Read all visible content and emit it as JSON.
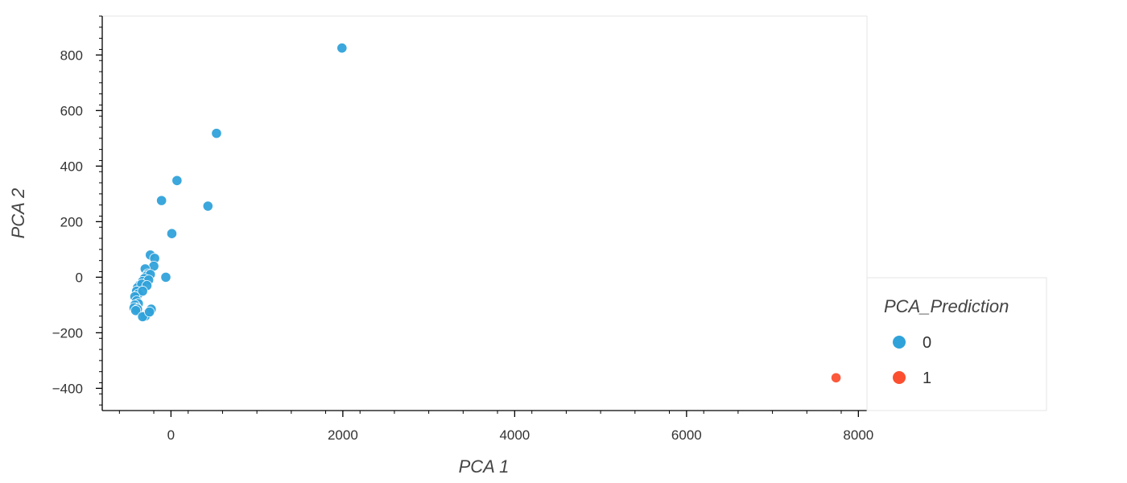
{
  "chart_data": {
    "type": "scatter",
    "title": "",
    "xlabel": "PCA 1",
    "ylabel": "PCA 2",
    "xlim": [
      -800,
      8100
    ],
    "ylim": [
      -480,
      940
    ],
    "x_ticks": [
      0,
      2000,
      4000,
      6000,
      8000
    ],
    "y_ticks": [
      -400,
      -200,
      0,
      200,
      400,
      600,
      800
    ],
    "x_tick_labels": [
      "0",
      "2000",
      "4000",
      "6000",
      "8000"
    ],
    "y_tick_labels": [
      "−400",
      "−200",
      "0",
      "200",
      "400",
      "600",
      "800"
    ],
    "grid": false,
    "legend": {
      "title": "PCA_Prediction",
      "placement": "right-bottom, outside plot",
      "entries": [
        {
          "label": "0",
          "color": "#30a2da"
        },
        {
          "label": "1",
          "color": "#fc4f30"
        }
      ]
    },
    "series": [
      {
        "name": "0",
        "color": "#30a2da",
        "points": [
          [
            1990,
            825
          ],
          [
            530,
            518
          ],
          [
            70,
            348
          ],
          [
            -110,
            276
          ],
          [
            430,
            256
          ],
          [
            10,
            157
          ],
          [
            -240,
            80
          ],
          [
            -190,
            68
          ],
          [
            -200,
            40
          ],
          [
            -300,
            30
          ],
          [
            -270,
            12
          ],
          [
            -280,
            5
          ],
          [
            -240,
            10
          ],
          [
            -310,
            -5
          ],
          [
            -330,
            -15
          ],
          [
            -260,
            -10
          ],
          [
            -370,
            -30
          ],
          [
            -390,
            -38
          ],
          [
            -340,
            -25
          ],
          [
            -280,
            -30
          ],
          [
            -60,
            0
          ],
          [
            -400,
            -50
          ],
          [
            -380,
            -60
          ],
          [
            -330,
            -50
          ],
          [
            -420,
            -70
          ],
          [
            -400,
            -85
          ],
          [
            -380,
            -95
          ],
          [
            -420,
            -100
          ],
          [
            -400,
            -110
          ],
          [
            -430,
            -110
          ],
          [
            -390,
            -115
          ],
          [
            -410,
            -120
          ],
          [
            -270,
            -130
          ],
          [
            -300,
            -140
          ],
          [
            -330,
            -142
          ],
          [
            -230,
            -115
          ],
          [
            -250,
            -125
          ]
        ]
      },
      {
        "name": "1",
        "color": "#fc4f30",
        "points": [
          [
            7740,
            -362
          ]
        ]
      }
    ]
  }
}
